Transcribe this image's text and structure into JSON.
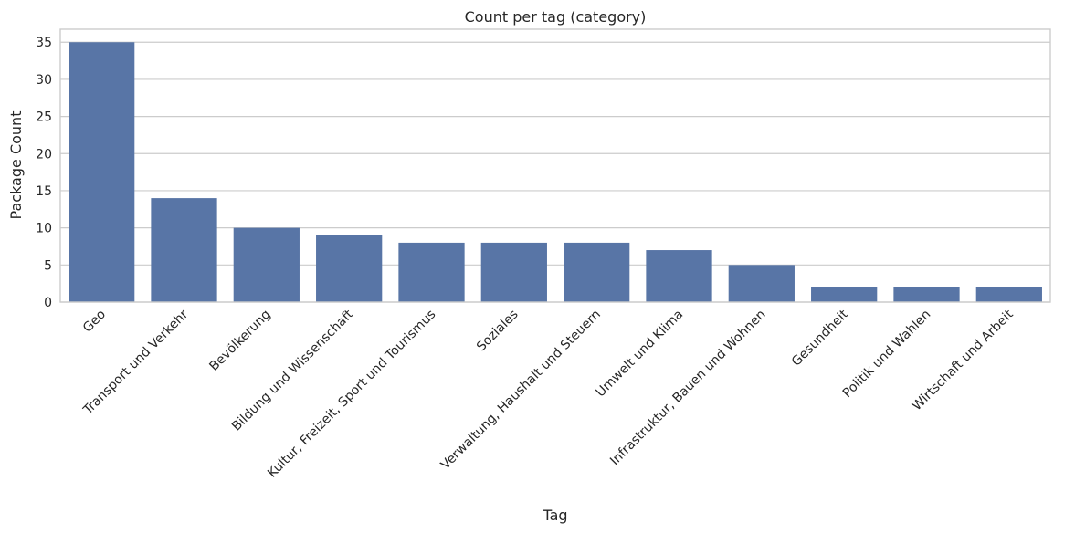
{
  "chart_data": {
    "type": "bar",
    "title": "Count per tag (category)",
    "xlabel": "Tag",
    "ylabel": "Package Count",
    "categories": [
      "Geo",
      "Transport und Verkehr",
      "Bevölkerung",
      "Bildung und Wissenschaft",
      "Kultur, Freizeit, Sport und Tourismus",
      "Soziales",
      "Verwaltung, Haushalt und Steuern",
      "Umwelt und Klima",
      "Infrastruktur, Bauen und Wohnen",
      "Gesundheit",
      "Politik und Wahlen",
      "Wirtschaft und Arbeit"
    ],
    "values": [
      35,
      14,
      10,
      9,
      8,
      8,
      8,
      7,
      5,
      2,
      2,
      2
    ],
    "yticks": [
      0,
      5,
      10,
      15,
      20,
      25,
      30,
      35
    ],
    "ylim": [
      0,
      36.75
    ],
    "grid": true,
    "bar_color": "#5875a6",
    "x_tick_rotation": "45deg"
  }
}
